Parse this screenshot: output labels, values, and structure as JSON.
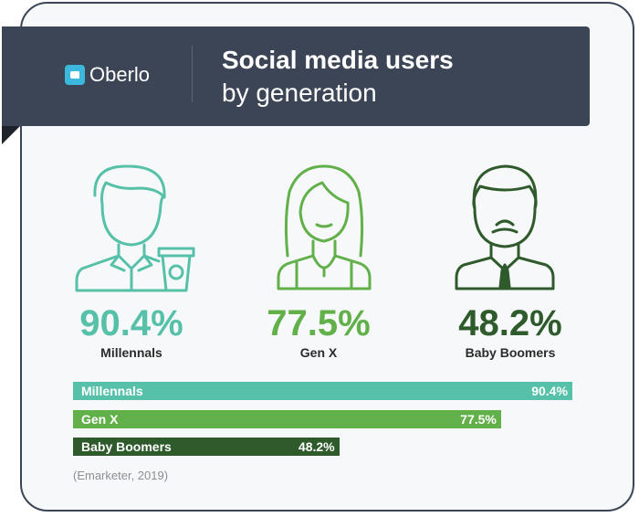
{
  "brand": {
    "name": "Oberlo",
    "color": "#3bb8dc"
  },
  "header": {
    "title_line1": "Social media users",
    "title_line2": "by generation",
    "background": "#3b4556"
  },
  "chart_data": {
    "type": "bar",
    "orientation": "horizontal",
    "categories": [
      "Millennals",
      "Gen X",
      "Baby Boomers"
    ],
    "values": [
      90.4,
      77.5,
      48.2
    ],
    "value_labels": [
      "90.4%",
      "77.5%",
      "48.2%"
    ],
    "colors": [
      "#56c1a8",
      "#62b04a",
      "#2f5a2c"
    ],
    "xlim": [
      0,
      100
    ],
    "grid": false,
    "title": "Social media users by generation"
  },
  "icons": [
    "millennial-with-coffee-icon",
    "gen-x-woman-icon",
    "baby-boomer-man-icon"
  ],
  "source": "(Emarketer, 2019)"
}
